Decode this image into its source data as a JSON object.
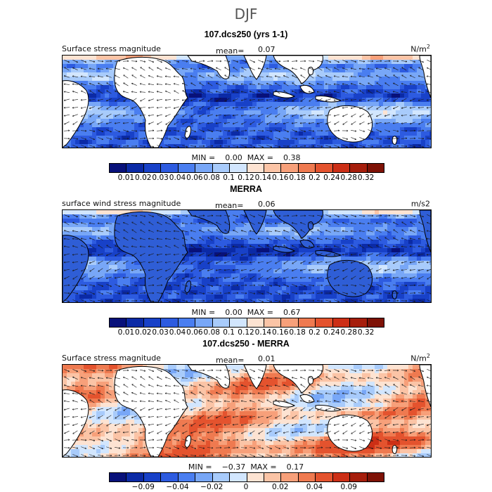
{
  "title": "DJF",
  "colors": {
    "positive_scale": [
      "#08117a",
      "#0b2aa6",
      "#1841c8",
      "#2d5be0",
      "#4a7ef0",
      "#78a7f7",
      "#a8cbfb",
      "#d2e6fe",
      "#fde3d2",
      "#fbc4a6",
      "#f7a07a",
      "#ef7a50",
      "#e4532e",
      "#cc2f16",
      "#a61e0c",
      "#7e1206"
    ],
    "diff_scale": [
      "#08117a",
      "#0b2aa6",
      "#1841c8",
      "#2d5be0",
      "#4a7ef0",
      "#78a7f7",
      "#a8cbfb",
      "#d2e6fe",
      "#fde3d2",
      "#fbc4a6",
      "#f7a07a",
      "#ef7a50",
      "#e4532e",
      "#cc2f16",
      "#a61e0c",
      "#7e1206"
    ],
    "land": "#ffffff"
  },
  "chart_data": [
    {
      "type": "heatmap",
      "title": "107.dcs250 (yrs 1-1)",
      "label_left": "Surface stress magnitude",
      "mean_label": "mean=",
      "mean": "0.07",
      "units": "N/m",
      "units_sup": "2",
      "min_label": "MIN =",
      "min": "0.00",
      "max_label": "MAX =",
      "max": "0.38",
      "scale": "positive_scale",
      "colorbar_ticks": [
        "0.01",
        "0.02",
        "0.03",
        "0.04",
        "0.06",
        "0.08",
        "0.1",
        "0.12",
        "0.14",
        "0.16",
        "0.18",
        "0.2",
        "0.24",
        "0.28",
        "0.32"
      ]
    },
    {
      "type": "heatmap",
      "title": "MERRA",
      "label_left": "surface wind stress magnitude",
      "mean_label": "mean=",
      "mean": "0.06",
      "units": "m/s2",
      "units_sup": "",
      "min_label": "MIN =",
      "min": "0.00",
      "max_label": "MAX =",
      "max": "0.67",
      "scale": "positive_scale",
      "colorbar_ticks": [
        "0.01",
        "0.02",
        "0.03",
        "0.04",
        "0.06",
        "0.08",
        "0.1",
        "0.12",
        "0.14",
        "0.16",
        "0.18",
        "0.2",
        "0.24",
        "0.28",
        "0.32"
      ]
    },
    {
      "type": "heatmap",
      "title": "107.dcs250 - MERRA",
      "label_left": "Surface stress magnitude",
      "mean_label": "mean=",
      "mean": "0.01",
      "units": "N/m",
      "units_sup": "2",
      "min_label": "MIN =",
      "min": "−0.37",
      "max_label": "MAX =",
      "max": "0.17",
      "scale": "diff_scale",
      "colorbar_ticks": [
        "−0.09",
        "−0.04",
        "−0.02",
        "0",
        "0.02",
        "0.04",
        "0.09"
      ],
      "colorbar_tick_positions": [
        2,
        4,
        6,
        8,
        10,
        12,
        14
      ]
    }
  ]
}
